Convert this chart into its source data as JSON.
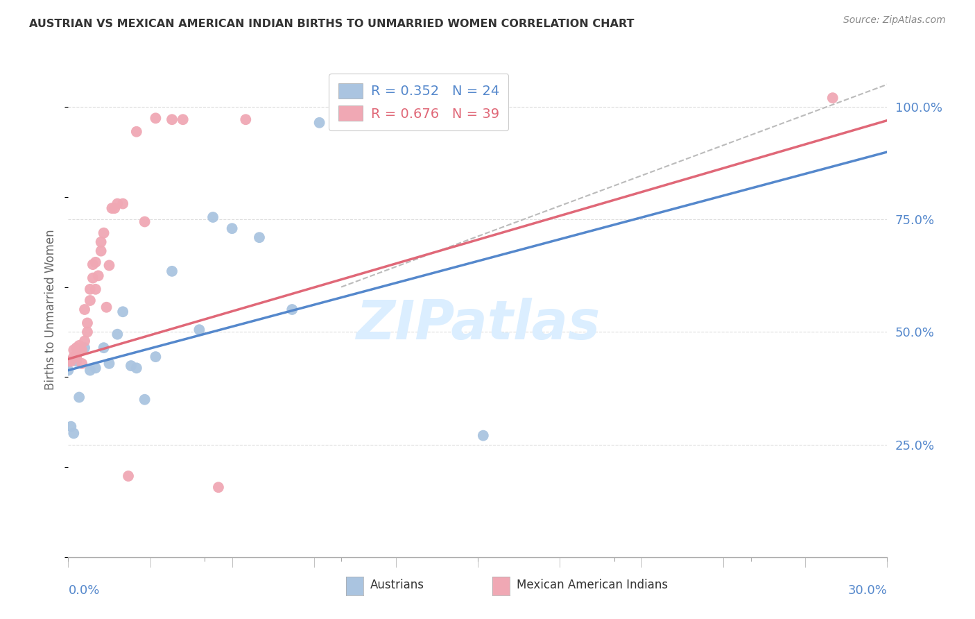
{
  "title": "AUSTRIAN VS MEXICAN AMERICAN INDIAN BIRTHS TO UNMARRIED WOMEN CORRELATION CHART",
  "source": "Source: ZipAtlas.com",
  "ylabel": "Births to Unmarried Women",
  "blue_color": "#aac4e0",
  "pink_color": "#f0a8b4",
  "blue_line_color": "#5588cc",
  "pink_line_color": "#e06878",
  "ref_line_color": "#bbbbbb",
  "background_color": "#ffffff",
  "grid_color": "#dddddd",
  "title_color": "#333333",
  "axis_label_color": "#5588cc",
  "ylabel_color": "#666666",
  "watermark_color": "#dbeeff",
  "source_color": "#888888",
  "legend_text_blue_color": "#5588cc",
  "legend_text_pink_color": "#e06878",
  "xmin": 0.0,
  "xmax": 0.3,
  "ymin": 0.0,
  "ymax": 1.1,
  "blue_points_x": [
    0.0,
    0.001,
    0.002,
    0.003,
    0.004,
    0.006,
    0.008,
    0.01,
    0.013,
    0.015,
    0.018,
    0.02,
    0.023,
    0.025,
    0.028,
    0.032,
    0.038,
    0.048,
    0.053,
    0.06,
    0.07,
    0.082,
    0.092,
    0.152
  ],
  "blue_points_y": [
    0.415,
    0.29,
    0.275,
    0.435,
    0.355,
    0.465,
    0.415,
    0.42,
    0.465,
    0.43,
    0.495,
    0.545,
    0.425,
    0.42,
    0.35,
    0.445,
    0.635,
    0.505,
    0.755,
    0.73,
    0.71,
    0.55,
    0.965,
    0.27
  ],
  "pink_points_x": [
    0.0,
    0.001,
    0.002,
    0.002,
    0.003,
    0.003,
    0.004,
    0.004,
    0.005,
    0.005,
    0.006,
    0.006,
    0.007,
    0.007,
    0.008,
    0.008,
    0.009,
    0.009,
    0.01,
    0.01,
    0.011,
    0.012,
    0.012,
    0.013,
    0.014,
    0.015,
    0.016,
    0.017,
    0.018,
    0.02,
    0.022,
    0.025,
    0.028,
    0.032,
    0.038,
    0.042,
    0.055,
    0.065,
    0.28
  ],
  "pink_points_y": [
    0.435,
    0.435,
    0.445,
    0.46,
    0.465,
    0.445,
    0.46,
    0.47,
    0.43,
    0.46,
    0.48,
    0.55,
    0.5,
    0.52,
    0.595,
    0.57,
    0.62,
    0.65,
    0.595,
    0.655,
    0.625,
    0.68,
    0.7,
    0.72,
    0.555,
    0.648,
    0.775,
    0.775,
    0.785,
    0.785,
    0.18,
    0.945,
    0.745,
    0.975,
    0.972,
    0.972,
    0.155,
    0.972,
    1.02
  ],
  "blue_trend_x": [
    0.0,
    0.3
  ],
  "blue_trend_y": [
    0.415,
    0.9
  ],
  "pink_trend_x": [
    0.0,
    0.3
  ],
  "pink_trend_y": [
    0.44,
    0.97
  ],
  "ref_line_x": [
    0.1,
    0.3
  ],
  "ref_line_y": [
    0.6,
    1.05
  ]
}
